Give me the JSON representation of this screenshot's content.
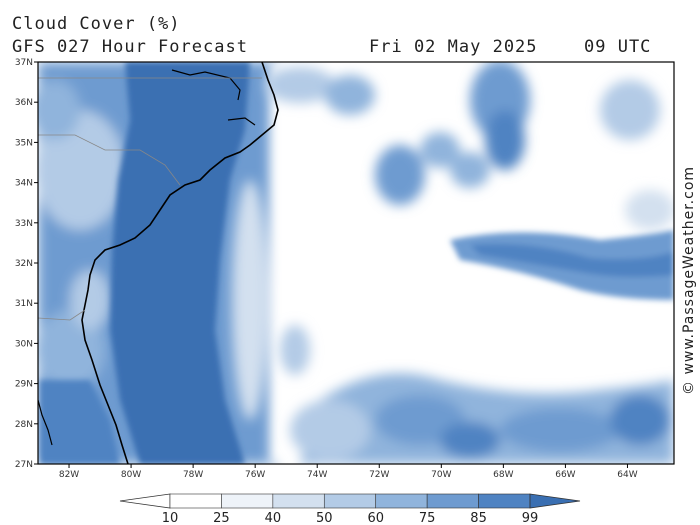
{
  "header": {
    "title": "Cloud Cover (%)",
    "subtitle": "GFS 027 Hour Forecast",
    "date": "Fri 02 May 2025",
    "time": "09 UTC"
  },
  "credit": "© www.PassageWeather.com",
  "map": {
    "lat_labels": [
      "37N",
      "36N",
      "35N",
      "34N",
      "33N",
      "32N",
      "31N",
      "30N",
      "29N",
      "28N",
      "27N"
    ],
    "lon_labels": [
      "82W",
      "80W",
      "78W",
      "76W",
      "74W",
      "72W",
      "70W",
      "68W",
      "66W",
      "64W"
    ],
    "lat_range": [
      27,
      37
    ],
    "lon_range": [
      -83,
      -62.5
    ]
  },
  "colorbar": {
    "labels": [
      "10",
      "25",
      "40",
      "50",
      "60",
      "75",
      "85",
      "99"
    ],
    "colors": [
      "#ffffff",
      "#eef3f9",
      "#d3e0ef",
      "#b3cbe6",
      "#90b4dc",
      "#6e9bd0",
      "#4f83c2",
      "#3a6fb2"
    ]
  }
}
